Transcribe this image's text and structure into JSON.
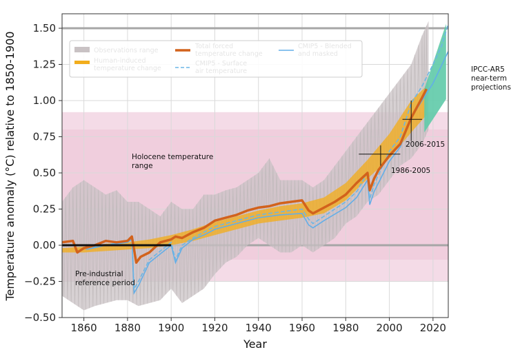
{
  "chart_data": {
    "type": "line",
    "xlabel": "Year",
    "ylabel": "Temperature anomaly (°C) relative to 1850-1900",
    "xlim": [
      1850,
      2027
    ],
    "ylim": [
      -0.5,
      1.6
    ],
    "xticks": [
      "1860",
      "1880",
      "1900",
      "1920",
      "1940",
      "1960",
      "1980",
      "2000",
      "2020"
    ],
    "yticks": [
      "−0.50",
      "−0.25",
      "0.00",
      "0.25",
      "0.50",
      "0.75",
      "1.00",
      "1.25",
      "1.50"
    ],
    "grid": true,
    "legend_placement": "top-left",
    "colors": {
      "observations": "#c8c3c3",
      "human_induced": "#f2ad1d",
      "total_forced": "#d2621c",
      "cmip5_surface": "#6bb6e5",
      "cmip5_blended": "#62aee8",
      "holocene": "#e8b4cc",
      "ipcc_projection": "#5fcaa8",
      "reference_lines": "#aaaaaa"
    },
    "legend": {
      "observations_range": "Observations range",
      "human_induced": "Human-induced\ntemperature change",
      "total_forced": "Total forced\ntemperature change",
      "cmip5_surface": "CMIP5 - Surface\nair temperature",
      "cmip5_blended": "CMIP5 - Blended\nand masked"
    },
    "annotations": {
      "holocene": "Holocene temperature\nrange",
      "pre_industrial": "Pre-industrial\nreference period",
      "period_1986": "1986-2005",
      "period_2006": "2006-2015",
      "ipcc": "IPCC-AR5\nnear-term\nprojections"
    },
    "holocene_range": {
      "outer": [
        -0.25,
        0.92
      ],
      "inner": [
        -0.1,
        0.8
      ]
    },
    "reference_lines_y": [
      0.0,
      1.5
    ],
    "pre_industrial_period": {
      "x": [
        1850,
        1900
      ],
      "y": 0.0
    },
    "period_markers": [
      {
        "label": "1986-2005",
        "x": [
          1986,
          2005
        ],
        "center": [
          1996,
          0.63
        ],
        "yrange": [
          0.55,
          0.69
        ]
      },
      {
        "label": "2006-2015",
        "x": [
          2006,
          2015
        ],
        "center": [
          2010,
          0.87
        ],
        "yrange": [
          0.72,
          1.0
        ]
      }
    ],
    "ipcc_projection": {
      "x": [
        2016,
        2026
      ],
      "lower": [
        0.78,
        1.01
      ],
      "upper": [
        1.08,
        1.53
      ]
    },
    "series": [
      {
        "name": "Human-induced temperature change",
        "x": [
          1850,
          1860,
          1870,
          1880,
          1890,
          1900,
          1910,
          1920,
          1930,
          1940,
          1950,
          1960,
          1970,
          1980,
          1990,
          2000,
          2010,
          2017
        ],
        "lower": [
          -0.05,
          -0.05,
          -0.04,
          -0.03,
          -0.02,
          0.0,
          0.03,
          0.07,
          0.11,
          0.15,
          0.17,
          0.19,
          0.22,
          0.31,
          0.46,
          0.6,
          0.78,
          0.9
        ],
        "upper": [
          -0.02,
          -0.01,
          0.01,
          0.02,
          0.04,
          0.07,
          0.11,
          0.16,
          0.2,
          0.24,
          0.27,
          0.29,
          0.33,
          0.43,
          0.59,
          0.77,
          1.0,
          1.1
        ],
        "values": [
          -0.03,
          -0.03,
          -0.02,
          0.0,
          0.01,
          0.04,
          0.07,
          0.12,
          0.16,
          0.2,
          0.22,
          0.24,
          0.27,
          0.37,
          0.52,
          0.69,
          0.88,
          0.98
        ]
      },
      {
        "name": "Total forced temperature change",
        "x": [
          1850,
          1855,
          1857,
          1860,
          1865,
          1870,
          1875,
          1880,
          1882,
          1884,
          1886,
          1890,
          1895,
          1900,
          1902,
          1905,
          1910,
          1915,
          1920,
          1925,
          1930,
          1935,
          1940,
          1945,
          1950,
          1955,
          1960,
          1963,
          1965,
          1970,
          1975,
          1980,
          1985,
          1990,
          1991,
          1993,
          1995,
          2000,
          2005,
          2010,
          2015,
          2017
        ],
        "values": [
          0.02,
          0.03,
          -0.05,
          -0.02,
          0.0,
          0.03,
          0.02,
          0.03,
          0.06,
          -0.12,
          -0.08,
          -0.05,
          0.02,
          0.04,
          0.06,
          0.05,
          0.09,
          0.12,
          0.17,
          0.19,
          0.21,
          0.24,
          0.26,
          0.27,
          0.29,
          0.3,
          0.31,
          0.24,
          0.22,
          0.26,
          0.3,
          0.35,
          0.43,
          0.5,
          0.38,
          0.46,
          0.52,
          0.62,
          0.7,
          0.88,
          1.02,
          1.08
        ]
      },
      {
        "name": "CMIP5 - Surface air temperature",
        "x": [
          1861,
          1870,
          1880,
          1882,
          1883,
          1885,
          1890,
          1900,
          1902,
          1905,
          1910,
          1915,
          1920,
          1930,
          1940,
          1950,
          1960,
          1963,
          1965,
          1970,
          1980,
          1985,
          1990,
          1991,
          1993,
          2000,
          2005,
          2010,
          2015,
          2020,
          2024,
          2027
        ],
        "values": [
          -0.02,
          0.0,
          0.03,
          0.05,
          -0.3,
          -0.25,
          -0.1,
          0.02,
          -0.1,
          0.0,
          0.05,
          0.09,
          0.13,
          0.17,
          0.21,
          0.23,
          0.25,
          0.18,
          0.15,
          0.2,
          0.3,
          0.37,
          0.5,
          0.32,
          0.42,
          0.65,
          0.75,
          0.98,
          1.1,
          1.25,
          1.38,
          1.53
        ]
      },
      {
        "name": "CMIP5 - Blended and masked",
        "x": [
          1861,
          1870,
          1880,
          1882,
          1883,
          1885,
          1890,
          1900,
          1902,
          1905,
          1910,
          1915,
          1920,
          1930,
          1940,
          1950,
          1960,
          1963,
          1965,
          1970,
          1980,
          1985,
          1990,
          1991,
          1993,
          2000,
          2005,
          2010,
          2015,
          2020,
          2027
        ],
        "values": [
          -0.03,
          0.0,
          0.02,
          0.04,
          -0.33,
          -0.28,
          -0.12,
          0.0,
          -0.12,
          -0.02,
          0.04,
          0.07,
          0.11,
          0.15,
          0.19,
          0.21,
          0.22,
          0.14,
          0.12,
          0.17,
          0.26,
          0.33,
          0.45,
          0.28,
          0.37,
          0.58,
          0.68,
          0.88,
          1.0,
          1.12,
          1.34
        ]
      }
    ],
    "observations_range": {
      "x": [
        1850,
        1855,
        1860,
        1865,
        1870,
        1875,
        1880,
        1885,
        1890,
        1895,
        1900,
        1905,
        1910,
        1915,
        1920,
        1925,
        1930,
        1935,
        1940,
        1945,
        1950,
        1955,
        1960,
        1965,
        1970,
        1975,
        1980,
        1985,
        1990,
        1995,
        2000,
        2005,
        2010,
        2015,
        2018
      ],
      "lower": [
        -0.35,
        -0.4,
        -0.45,
        -0.42,
        -0.4,
        -0.38,
        -0.38,
        -0.42,
        -0.4,
        -0.38,
        -0.3,
        -0.4,
        -0.35,
        -0.3,
        -0.2,
        -0.12,
        -0.08,
        0.0,
        0.05,
        0.0,
        -0.05,
        -0.05,
        0.0,
        -0.05,
        0.0,
        0.05,
        0.15,
        0.2,
        0.3,
        0.35,
        0.45,
        0.55,
        0.6,
        0.7,
        0.8
      ],
      "upper": [
        0.3,
        0.4,
        0.45,
        0.4,
        0.35,
        0.38,
        0.3,
        0.3,
        0.25,
        0.2,
        0.3,
        0.25,
        0.25,
        0.35,
        0.35,
        0.38,
        0.4,
        0.45,
        0.5,
        0.6,
        0.45,
        0.45,
        0.45,
        0.4,
        0.45,
        0.55,
        0.65,
        0.75,
        0.85,
        0.95,
        1.05,
        1.15,
        1.25,
        1.45,
        1.55
      ]
    }
  }
}
